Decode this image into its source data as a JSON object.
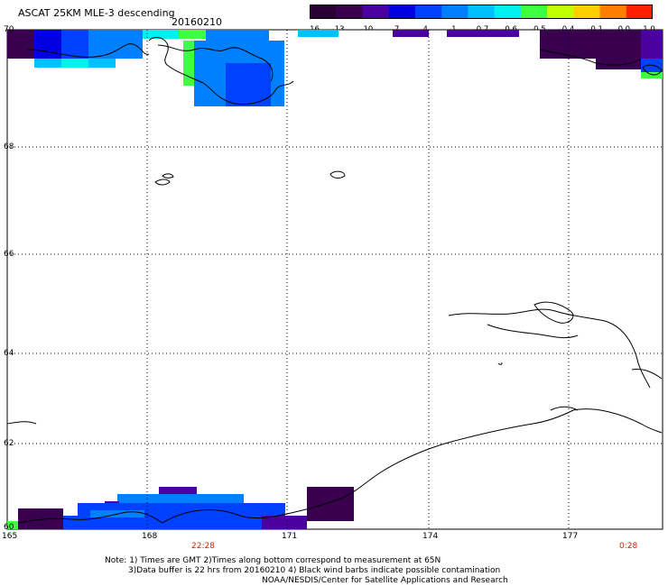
{
  "header": {
    "title": "ASCAT 25KM MLE-3 descending",
    "date": "20160210"
  },
  "colorbar": {
    "labels": [
      "-16",
      "-13",
      "-10",
      "-7",
      "-4",
      "-1",
      "-0.7",
      "-0.6",
      "-0.5",
      "-0.4",
      "-0.1",
      "0.0",
      "1.0"
    ],
    "colors": [
      "#2b0033",
      "#3a0050",
      "#4b00a0",
      "#0000e0",
      "#0040ff",
      "#0080ff",
      "#00c0ff",
      "#00f0f0",
      "#40ff40",
      "#c0ff00",
      "#ffd000",
      "#ff8000",
      "#ff2000"
    ]
  },
  "axes": {
    "lat_labels": [
      "70",
      "68",
      "66",
      "64",
      "62",
      "60"
    ],
    "lon_labels": [
      "165",
      "168",
      "171",
      "174",
      "177"
    ]
  },
  "times": {
    "left": "22:28",
    "right": "0:28"
  },
  "notes": [
    "Note: 1) Times are GMT 2)Times along bottom correspond to measurement at 65N",
    "3)Data buffer is 22 hrs from 20160210 4) Black wind barbs indicate possible contamination",
    "NOAA/NESDIS/Center for Satellite Applications and Research"
  ]
}
